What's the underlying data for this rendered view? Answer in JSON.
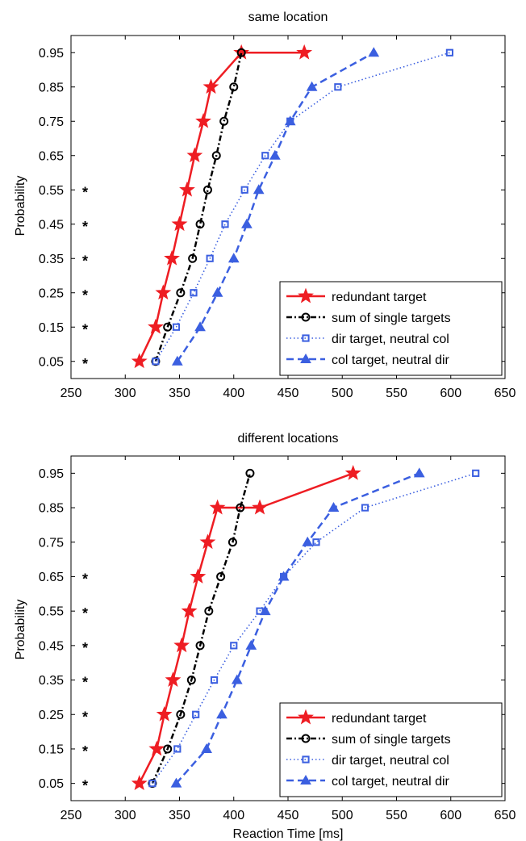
{
  "figure": {
    "xlabel": "Reaction Time [ms]",
    "ylabel": "Probability"
  },
  "chart_data": [
    {
      "type": "line",
      "title": "same location",
      "xlabel": "",
      "ylabel": "Probability",
      "xlim": [
        250,
        650
      ],
      "ylim": [
        0,
        1
      ],
      "xticks": [
        "250",
        "300",
        "350",
        "400",
        "450",
        "500",
        "550",
        "600",
        "650"
      ],
      "yticks": [
        "0.05",
        "0.15",
        "0.25",
        "0.35",
        "0.45",
        "0.55",
        "0.65",
        "0.75",
        "0.85",
        "0.95"
      ],
      "significance_marks": {
        "symbol": "*",
        "at_probabilities": [
          0.05,
          0.15,
          0.25,
          0.35,
          0.45,
          0.55
        ]
      },
      "legend_position": "bottom-right",
      "series": [
        {
          "name": "redundant target",
          "color": "#ee1d23",
          "line_style": "solid",
          "marker": "star",
          "x": [
            313,
            328,
            335,
            343,
            350,
            357,
            364,
            372,
            379,
            407,
            465
          ],
          "y": [
            0.05,
            0.15,
            0.25,
            0.35,
            0.45,
            0.55,
            0.65,
            0.75,
            0.85,
            0.95,
            0.95
          ]
        },
        {
          "name": "sum of single targets",
          "color": "#000000",
          "line_style": "dash-dot",
          "marker": "circle",
          "x": [
            328,
            339,
            351,
            362,
            369,
            376,
            384,
            391,
            400,
            407
          ],
          "y": [
            0.05,
            0.15,
            0.25,
            0.35,
            0.45,
            0.55,
            0.65,
            0.75,
            0.85,
            0.95
          ]
        },
        {
          "name": "dir target, neutral col",
          "color": "#3b5fe0",
          "line_style": "dotted",
          "marker": "square",
          "x": [
            328,
            347,
            363,
            378,
            392,
            410,
            429,
            452,
            496,
            599
          ],
          "y": [
            0.05,
            0.15,
            0.25,
            0.35,
            0.45,
            0.55,
            0.65,
            0.75,
            0.85,
            0.95
          ]
        },
        {
          "name": "col target, neutral dir",
          "color": "#3b5fe0",
          "line_style": "dashed",
          "marker": "triangle",
          "x": [
            348,
            369,
            385,
            400,
            412,
            423,
            438,
            452,
            472,
            529
          ],
          "y": [
            0.05,
            0.15,
            0.25,
            0.35,
            0.45,
            0.55,
            0.65,
            0.75,
            0.85,
            0.95
          ]
        }
      ]
    },
    {
      "type": "line",
      "title": "different locations",
      "xlabel": "Reaction Time [ms]",
      "ylabel": "Probability",
      "xlim": [
        250,
        650
      ],
      "ylim": [
        0,
        1
      ],
      "xticks": [
        "250",
        "300",
        "350",
        "400",
        "450",
        "500",
        "550",
        "600",
        "650"
      ],
      "yticks": [
        "0.05",
        "0.15",
        "0.25",
        "0.35",
        "0.45",
        "0.55",
        "0.65",
        "0.75",
        "0.85",
        "0.95"
      ],
      "significance_marks": {
        "symbol": "*",
        "at_probabilities": [
          0.05,
          0.15,
          0.25,
          0.35,
          0.45,
          0.55,
          0.65
        ]
      },
      "legend_position": "bottom-right",
      "series": [
        {
          "name": "redundant target",
          "color": "#ee1d23",
          "line_style": "solid",
          "marker": "star",
          "x": [
            313,
            329,
            336,
            344,
            352,
            359,
            367,
            376,
            385,
            424,
            510
          ],
          "y": [
            0.05,
            0.15,
            0.25,
            0.35,
            0.45,
            0.55,
            0.65,
            0.75,
            0.85,
            0.85,
            0.95
          ]
        },
        {
          "name": "sum of single targets",
          "color": "#000000",
          "line_style": "dash-dot",
          "marker": "circle",
          "x": [
            325,
            339,
            351,
            361,
            369,
            377,
            388,
            399,
            406,
            415
          ],
          "y": [
            0.05,
            0.15,
            0.25,
            0.35,
            0.45,
            0.55,
            0.65,
            0.75,
            0.85,
            0.95
          ]
        },
        {
          "name": "dir target, neutral col",
          "color": "#3b5fe0",
          "line_style": "dotted",
          "marker": "square",
          "x": [
            325,
            348,
            365,
            382,
            400,
            424,
            446,
            476,
            521,
            623
          ],
          "y": [
            0.05,
            0.15,
            0.25,
            0.35,
            0.45,
            0.55,
            0.65,
            0.75,
            0.85,
            0.95
          ]
        },
        {
          "name": "col target, neutral dir",
          "color": "#3b5fe0",
          "line_style": "dashed",
          "marker": "triangle",
          "x": [
            347,
            375,
            389,
            403,
            416,
            429,
            446,
            468,
            492,
            571
          ],
          "y": [
            0.05,
            0.15,
            0.25,
            0.35,
            0.45,
            0.55,
            0.65,
            0.75,
            0.85,
            0.95
          ]
        }
      ]
    }
  ]
}
